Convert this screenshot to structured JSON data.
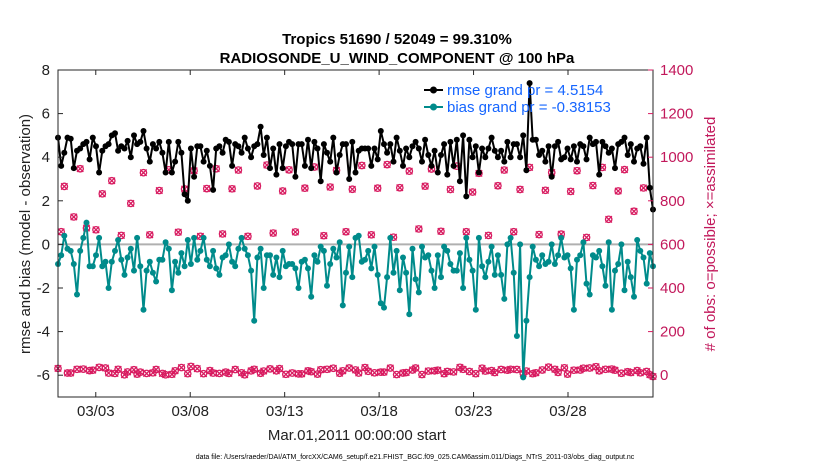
{
  "chart_data": {
    "type": "line",
    "title": "Tropics 51690 / 52049 = 99.310%",
    "subtitle": "RADIOSONDE_U_WIND_COMPONENT @ 100 hPa",
    "xlabel": "Mar.01,2011 00:00:00 start",
    "ylabel_left": "rmse and bias (model - observation)",
    "ylabel_right": "# of obs: o=possible; ×=assimilated",
    "x_tick_labels": [
      "03/03",
      "03/08",
      "03/13",
      "03/18",
      "03/23",
      "03/28"
    ],
    "x_tick_days": [
      3,
      8,
      13,
      18,
      23,
      28
    ],
    "xlim": [
      1,
      32.5
    ],
    "ylim_left": [
      -7,
      8
    ],
    "y_ticks_left": [
      "8",
      "6",
      "4",
      "2",
      "0",
      "-2",
      "-4",
      "-6"
    ],
    "y_ticks_left_values": [
      8,
      6,
      4,
      2,
      0,
      -2,
      -4,
      -6
    ],
    "ylim_right": [
      -100,
      1400
    ],
    "y_ticks_right": [
      "1400",
      "1200",
      "1000",
      "800",
      "600",
      "400",
      "200",
      "0"
    ],
    "y_ticks_right_values": [
      1400,
      1200,
      1000,
      800,
      600,
      400,
      200,
      0
    ],
    "zero_line": 0,
    "colors": {
      "rmse": "#000000",
      "bias": "#008b8b",
      "obs": "#d81b60",
      "legend_text": "#1565ff",
      "zero": "#b0b0b0"
    },
    "series": [
      {
        "name": "rmse grand pr = 4.5154",
        "axis": "left",
        "values": [
          4.9,
          3.6,
          4.2,
          4.9,
          4.85,
          3.5,
          4.3,
          4.4,
          4.6,
          4.7,
          3.9,
          4.9,
          4.5,
          3.3,
          4.3,
          4.5,
          4.6,
          5.0,
          5.1,
          4.3,
          4.5,
          4.4,
          4.75,
          4.0,
          5.0,
          4.6,
          4.7,
          5.2,
          4.4,
          3.8,
          4.6,
          4.4,
          4.7,
          4.2,
          3.3,
          4.7,
          3.3,
          3.8,
          4.7,
          4.2,
          2.3,
          2.0,
          4.4,
          3.1,
          4.5,
          4.5,
          3.8,
          4.3,
          3.6,
          2.5,
          4.4,
          4.5,
          4.2,
          4.8,
          4.7,
          3.6,
          4.6,
          4.5,
          4.2,
          4.9,
          4.4,
          4.0,
          4.5,
          4.6,
          5.4,
          4.1,
          4.9,
          3.5,
          4.4,
          3.2,
          4.6,
          3.5,
          4.5,
          4.7,
          4.6,
          3.1,
          4.6,
          4.6,
          3.6,
          4.8,
          3.5,
          4.7,
          4.4,
          2.9,
          4.6,
          4.2,
          3.8,
          4.9,
          3.3,
          4.1,
          4.6,
          4.6,
          3.0,
          4.7,
          3.3,
          4.3,
          4.4,
          4.4,
          4.4,
          3.6,
          4.4,
          3.9,
          5.2,
          4.6,
          4.2,
          4.6,
          3.8,
          4.9,
          4.3,
          3.6,
          4.4,
          4.0,
          4.5,
          4.7,
          4.4,
          3.8,
          4.8,
          4.1,
          3.6,
          4.3,
          3.3,
          4.1,
          4.6,
          3.2,
          4.7,
          3.6,
          4.8,
          2.9,
          5.0,
          2.2,
          4.8,
          4.0,
          4.5,
          3.3,
          4.4,
          4.0,
          4.4,
          4.9,
          4.3,
          4.0,
          4.3,
          3.8,
          4.7,
          4.0,
          4.6,
          4.6,
          4.0,
          5.0,
          3.4,
          7.4,
          4.8,
          4.8,
          4.1,
          4.3,
          3.8,
          4.5,
          3.1,
          4.5,
          4.7,
          3.9,
          4.0,
          4.4,
          3.9,
          4.5,
          3.8,
          4.6,
          4.5,
          3.9,
          4.9,
          4.6,
          4.7,
          3.2,
          4.7,
          4.5,
          4.2,
          4.4,
          3.5,
          4.6,
          4.7,
          4.9,
          4.1,
          4.6,
          3.8,
          4.4,
          4.5,
          3.7,
          4.9,
          2.6,
          1.6
        ]
      },
      {
        "name": "bias grand pr = -0.38153",
        "axis": "left",
        "values": [
          -0.9,
          -0.5,
          0.4,
          -0.2,
          -0.3,
          -0.9,
          -2.3,
          -0.3,
          0.3,
          1.0,
          -1.0,
          -1.0,
          -0.5,
          0.3,
          -1.0,
          -0.8,
          -2.0,
          -0.8,
          -0.3,
          0.2,
          -0.7,
          -1.4,
          -0.6,
          -0.2,
          -1.2,
          0.3,
          -1.0,
          -3.0,
          -1.2,
          -0.8,
          -1.3,
          -1.7,
          -0.7,
          -0.7,
          0.1,
          -0.2,
          -2.1,
          -0.8,
          -1.3,
          -0.4,
          -1.0,
          0.2,
          -0.9,
          0.3,
          -0.7,
          -0.3,
          0.3,
          -0.7,
          -1.0,
          -0.3,
          -1.1,
          -1.4,
          -0.6,
          -0.5,
          0.0,
          -0.8,
          -1.0,
          -0.2,
          0.3,
          -0.2,
          -0.5,
          -1.2,
          -3.5,
          -0.6,
          -0.2,
          -2.0,
          -0.5,
          -0.5,
          -1.4,
          -0.6,
          -1.5,
          -0.3,
          -1.0,
          -0.9,
          -0.9,
          -1.1,
          -2.0,
          -0.8,
          -0.7,
          -1.1,
          -2.4,
          -0.5,
          -0.8,
          -0.1,
          -0.3,
          -1.9,
          -0.9,
          -0.2,
          -0.6,
          0.1,
          -2.8,
          -1.3,
          -0.1,
          -1.5,
          0.3,
          0.4,
          -0.8,
          -0.7,
          -0.3,
          -1.1,
          -0.1,
          -1.4,
          -2.7,
          -2.9,
          -1.5,
          0.3,
          -1.3,
          -0.3,
          -2.1,
          -0.6,
          -1.3,
          -3.2,
          -0.2,
          -1.6,
          -2.2,
          -0.1,
          -0.6,
          -0.5,
          -1.2,
          -2.0,
          -0.5,
          -1.5,
          -0.1,
          -0.3,
          -0.9,
          -1.2,
          -1.2,
          -0.4,
          -2.0,
          0.3,
          -0.7,
          -1.2,
          -3.0,
          0.3,
          -1.0,
          -1.5,
          -0.8,
          -0.1,
          -1.4,
          -0.5,
          -1.4,
          -2.5,
          0.0,
          0.3,
          -1.3,
          -4.2,
          0.0,
          -6.1,
          -3.5,
          -1.5,
          -0.1,
          -0.7,
          -1.0,
          -0.5,
          -0.9,
          -0.8,
          0.0,
          -0.9,
          -0.5,
          0.3,
          -0.6,
          -0.5,
          -1.1,
          -3.0,
          -0.7,
          -0.5,
          0.1,
          -1.8,
          -2.3,
          -0.5,
          -0.6,
          -0.3,
          -1.0,
          -1.9,
          0.1,
          -3.0,
          -1.2,
          -0.9,
          0.0,
          -2.1,
          -0.8,
          -1.5,
          -2.4,
          0.2,
          -0.3,
          -0.6,
          -1.8,
          -0.4,
          -1.0
        ]
      },
      {
        "name": "# obs possible / assimilated",
        "axis": "right",
        "values": [
          31,
          658,
          866,
          10,
          10,
          726,
          27,
          947,
          28,
          675,
          21,
          23,
          667,
          36,
          832,
          33,
          10,
          892,
          8,
          27,
          641,
          2,
          15,
          788,
          25,
          5,
          14,
          929,
          8,
          644,
          11,
          26,
          847,
          8,
          2,
          942,
          4,
          20,
          656,
          35,
          854,
          7,
          40,
          938,
          30,
          637,
          7,
          856,
          21,
          10,
          947,
          8,
          648,
          14,
          8,
          855,
          26,
          941,
          11,
          2,
          637,
          20,
          27,
          868,
          9,
          19,
          964,
          29,
          652,
          20,
          30,
          845,
          4,
          942,
          10,
          657,
          6,
          6,
          858,
          20,
          16,
          955,
          5,
          25,
          640,
          27,
          863,
          32,
          940,
          9,
          20,
          658,
          33,
          853,
          24,
          10,
          962,
          35,
          18,
          644,
          11,
          858,
          14,
          14,
          966,
          33,
          633,
          3,
          860,
          10,
          12,
          936,
          24,
          33,
          671,
          3,
          867,
          19,
          946,
          20,
          23,
          660,
          7,
          17,
          852,
          15,
          959,
          36,
          27,
          658,
          17,
          840,
          7,
          926,
          32,
          19,
          641,
          21,
          12,
          869,
          26,
          941,
          23,
          27,
          658,
          26,
          852,
          8,
          19,
          953,
          7,
          11,
          645,
          24,
          848,
          37,
          930,
          27,
          13,
          647,
          34,
          5,
          843,
          23,
          938,
          24,
          32,
          632,
          33,
          870,
          39,
          20,
          953,
          27,
          715,
          28,
          23,
          845,
          9,
          943,
          16,
          12,
          752,
          21,
          11,
          859,
          17,
          2,
          -6
        ]
      }
    ],
    "legend": [
      "rmse grand pr = 4.5154",
      "bias grand pr = -0.38153"
    ],
    "legend_position": "top-right",
    "footer": "data file: /Users/raeder/DAI/ATM_forcXX/CAM6_setup/f.e21.FHIST_BGC.f09_025.CAM6assim.011/Diags_NTrS_2011-03/obs_diag_output.nc"
  }
}
